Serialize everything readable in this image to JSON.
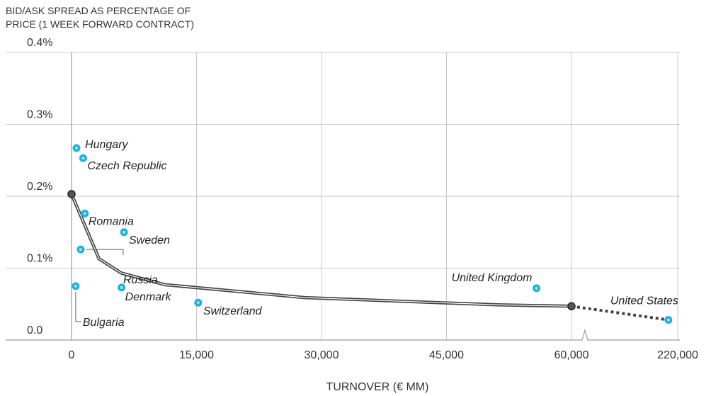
{
  "chart_data": {
    "type": "scatter",
    "title": "",
    "ylabel": "BID/ASK SPREAD AS PERCENTAGE OF PRICE (1 WEEK  FORWARD CONTRACT)",
    "ylabel_lines": [
      "BID/ASK SPREAD AS PERCENTAGE OF",
      "PRICE (1 WEEK  FORWARD CONTRACT)"
    ],
    "xlabel": "TURNOVER (€ MM)",
    "ylim": [
      0,
      0.4
    ],
    "y_ticks": [
      "0.4%",
      "0.3%",
      "0.2%",
      "0.1%",
      "0.0"
    ],
    "y_tick_values": [
      0.4,
      0.3,
      0.2,
      0.1,
      0.0
    ],
    "x_ticks": [
      "0",
      "15,000",
      "30,000",
      "45,000",
      "60,000",
      "220,000"
    ],
    "x_tick_values": [
      0,
      15000,
      30000,
      45000,
      60000,
      220000
    ],
    "x_axis_break": {
      "between": [
        60000,
        220000
      ]
    },
    "grid": true,
    "point_color": "#1fb2e0",
    "line_color": "#444444",
    "points": [
      {
        "label": "Hungary",
        "x": 600,
        "y": 0.267
      },
      {
        "label": "Czech Republic",
        "x": 1400,
        "y": 0.253
      },
      {
        "label": "Romania",
        "x": 1600,
        "y": 0.176
      },
      {
        "label": "Sweden",
        "x": 6300,
        "y": 0.15
      },
      {
        "label": "Russia",
        "x": 1100,
        "y": 0.126
      },
      {
        "label": "Bulgaria",
        "x": 500,
        "y": 0.075
      },
      {
        "label": "Denmark",
        "x": 6000,
        "y": 0.073
      },
      {
        "label": "Switzerland",
        "x": 15200,
        "y": 0.052
      },
      {
        "label": "United Kingdom",
        "x": 55800,
        "y": 0.072
      },
      {
        "label": "United States",
        "x": 206000,
        "y": 0.028
      }
    ],
    "trend_line": {
      "x": [
        0,
        3300,
        6000,
        11200,
        28000,
        51000,
        60000
      ],
      "y": [
        0.203,
        0.113,
        0.093,
        0.077,
        0.059,
        0.049,
        0.047
      ]
    },
    "trend_extension": {
      "x": [
        60000,
        206000
      ],
      "y": [
        0.047,
        0.028
      ],
      "style": "dotted"
    }
  }
}
